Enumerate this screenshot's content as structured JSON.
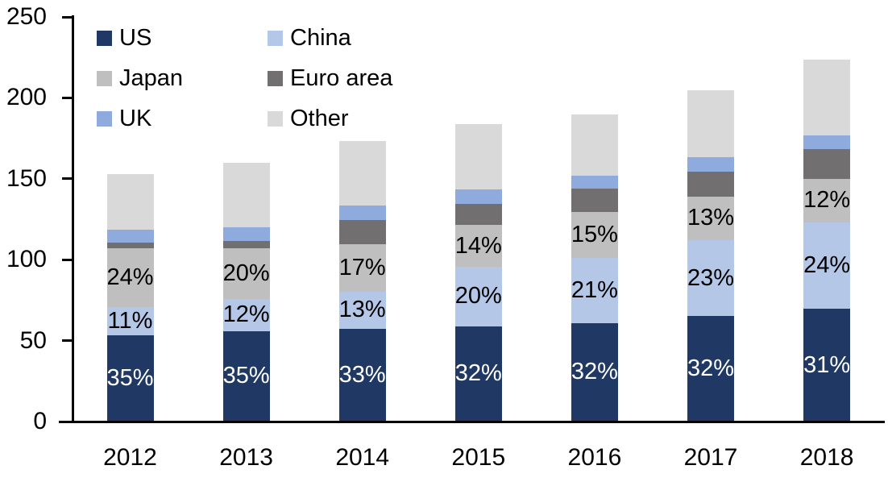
{
  "chart_data": {
    "type": "bar",
    "stacked": true,
    "title": "",
    "categories": [
      "2012",
      "2013",
      "2014",
      "2015",
      "2016",
      "2017",
      "2018"
    ],
    "series": [
      {
        "name": "US",
        "color": "#1F3864",
        "values": [
          53.5,
          56,
          57.5,
          59,
          61,
          65,
          69.5
        ],
        "segment_labels": [
          "35%",
          "35%",
          "33%",
          "32%",
          "32%",
          "32%",
          "31%"
        ],
        "label_color": "#FFFFFF"
      },
      {
        "name": "China",
        "color": "#B4C7E7",
        "values": [
          17,
          19.5,
          22.5,
          36.5,
          40,
          47,
          53.5
        ],
        "segment_labels": [
          "11%",
          "12%",
          "13%",
          "20%",
          "21%",
          "23%",
          "24%"
        ],
        "label_color": "#000000"
      },
      {
        "name": "Japan",
        "color": "#BFBFBF",
        "values": [
          36.5,
          31.5,
          29.5,
          26,
          28.5,
          27,
          27
        ],
        "segment_labels": [
          "24%",
          "20%",
          "17%",
          "14%",
          "15%",
          "13%",
          "12%"
        ],
        "label_color": "#000000"
      },
      {
        "name": "Euro area",
        "color": "#716F6F",
        "values": [
          3.5,
          4.5,
          15,
          13,
          14.5,
          15.5,
          18.5
        ],
        "segment_labels": null
      },
      {
        "name": "UK",
        "color": "#8FAADC",
        "values": [
          8,
          8.5,
          9,
          9,
          8,
          9,
          8.5
        ],
        "segment_labels": null
      },
      {
        "name": "Other",
        "color": "#D9D9D9",
        "values": [
          34.5,
          40,
          40,
          40.5,
          38,
          41,
          46.5
        ],
        "segment_labels": null
      }
    ],
    "ylim": [
      0,
      250
    ],
    "yticks": [
      0,
      50,
      100,
      150,
      200,
      250
    ],
    "legend": {
      "position": "top-left",
      "columns": 2
    },
    "axis_color": "#000000",
    "background": "#FFFFFF",
    "grid": false
  }
}
